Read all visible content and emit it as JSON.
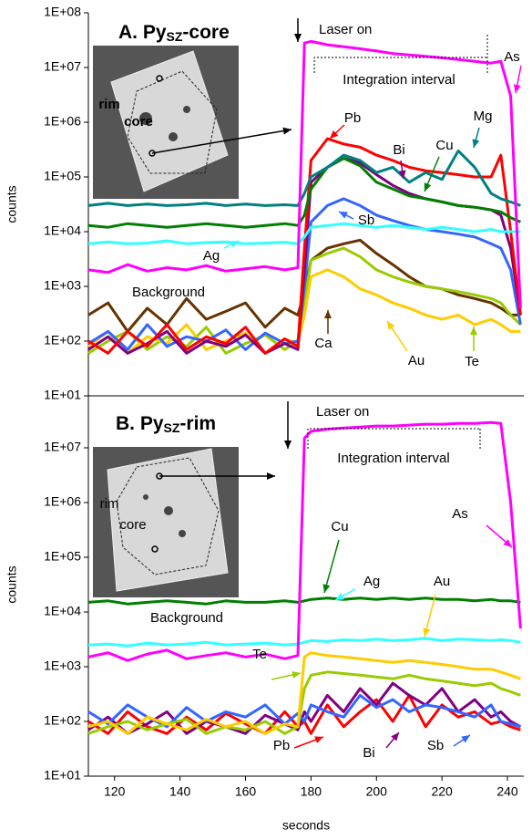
{
  "chart_data": [
    {
      "type": "line",
      "log_y": true,
      "title": {
        "main": "A. Py",
        "sub": "SZ",
        "rest": "-core"
      },
      "y_label": "counts",
      "annotations": [
        "Laser on",
        "Integration interval",
        "Background"
      ],
      "inset_labels": [
        "rim",
        "core"
      ],
      "xlim": [
        112,
        245
      ],
      "ylim": [
        10,
        100000000
      ],
      "yticks": [
        {
          "value": 10,
          "label": "1E+01"
        },
        {
          "value": 100,
          "label": "1E+02"
        },
        {
          "value": 1000,
          "label": "1E+03"
        },
        {
          "value": 10000,
          "label": "1E+04"
        },
        {
          "value": 100000,
          "label": "1E+05"
        },
        {
          "value": 1000000,
          "label": "1E+06"
        },
        {
          "value": 10000000,
          "label": "1E+07"
        },
        {
          "value": 100000000,
          "label": "1E+08"
        }
      ],
      "x": [
        112,
        118,
        124,
        130,
        136,
        142,
        148,
        154,
        160,
        166,
        172,
        176,
        178,
        180,
        185,
        190,
        195,
        200,
        205,
        210,
        215,
        220,
        225,
        230,
        235,
        238,
        241,
        244
      ],
      "series": [
        {
          "name": "Ca",
          "color": "#663300",
          "values": [
            300,
            500,
            150,
            400,
            200,
            600,
            250,
            350,
            500,
            180,
            400,
            300,
            800,
            3000,
            5000,
            6000,
            7000,
            4000,
            2500,
            1500,
            1000,
            900,
            700,
            600,
            500,
            400,
            300,
            300
          ]
        },
        {
          "name": "Te",
          "color": "#99cc00",
          "values": [
            60,
            100,
            150,
            70,
            120,
            80,
            180,
            60,
            90,
            130,
            70,
            100,
            500,
            3000,
            4000,
            5000,
            3500,
            2000,
            1500,
            1200,
            1000,
            900,
            800,
            700,
            600,
            500,
            300,
            200
          ]
        },
        {
          "name": "Au",
          "color": "#ffcc00",
          "values": [
            80,
            150,
            60,
            120,
            90,
            200,
            70,
            100,
            140,
            60,
            110,
            90,
            300,
            1500,
            2000,
            1500,
            900,
            700,
            500,
            400,
            300,
            250,
            300,
            200,
            250,
            200,
            150,
            150
          ]
        },
        {
          "name": "Sb",
          "color": "#3366ff",
          "values": [
            90,
            150,
            70,
            200,
            80,
            120,
            100,
            160,
            70,
            140,
            90,
            100,
            1000,
            15000,
            30000,
            40000,
            30000,
            20000,
            16000,
            13000,
            11000,
            10000,
            9000,
            8000,
            6000,
            5000,
            2000,
            200
          ]
        },
        {
          "name": "Bi",
          "color": "#800080",
          "values": [
            70,
            120,
            60,
            90,
            150,
            60,
            100,
            80,
            130,
            60,
            90,
            70,
            2000,
            80000,
            150000,
            220000,
            180000,
            110000,
            70000,
            50000,
            40000,
            35000,
            30000,
            28000,
            25000,
            20000,
            5000,
            300
          ]
        },
        {
          "name": "Pb",
          "color": "#ff0000",
          "values": [
            100,
            60,
            150,
            80,
            200,
            70,
            120,
            90,
            180,
            60,
            110,
            80,
            5000,
            200000,
            500000,
            400000,
            350000,
            250000,
            200000,
            150000,
            130000,
            120000,
            110000,
            100000,
            100000,
            250000,
            10000,
            300
          ]
        },
        {
          "name": "Ag",
          "color": "#33ffff",
          "values": [
            6000,
            6500,
            6000,
            6200,
            6800,
            6000,
            6300,
            6500,
            6000,
            6200,
            6400,
            6000,
            8000,
            12000,
            13000,
            14000,
            13000,
            12000,
            13000,
            12000,
            11000,
            12000,
            11000,
            10000,
            11000,
            10000,
            10000,
            10000
          ]
        },
        {
          "name": "Cu",
          "color": "#008000",
          "values": [
            13000,
            12000,
            14000,
            13000,
            12000,
            13000,
            14000,
            13000,
            12000,
            13000,
            14000,
            13000,
            20000,
            60000,
            150000,
            220000,
            160000,
            80000,
            60000,
            45000,
            40000,
            35000,
            30000,
            28000,
            25000,
            23000,
            18000,
            15000
          ]
        },
        {
          "name": "Mg",
          "color": "#008080",
          "values": [
            30000,
            33000,
            30000,
            32000,
            30000,
            31000,
            33000,
            30000,
            32000,
            30000,
            31000,
            30000,
            50000,
            100000,
            150000,
            250000,
            200000,
            120000,
            150000,
            80000,
            120000,
            90000,
            300000,
            150000,
            50000,
            40000,
            35000,
            30000
          ]
        },
        {
          "name": "As",
          "color": "#ff00ff",
          "values": [
            2000,
            1800,
            2500,
            1900,
            2200,
            2000,
            2400,
            1900,
            2100,
            2300,
            2000,
            2200,
            28000000,
            30000000,
            26000000,
            24000000,
            22000000,
            20000000,
            18000000,
            17000000,
            16000000,
            15000000,
            14000000,
            13000000,
            12000000,
            13000000,
            3000000,
            400
          ]
        }
      ]
    },
    {
      "type": "line",
      "log_y": true,
      "title": {
        "main": "B. Py",
        "sub": "SZ",
        "rest": "-rim"
      },
      "y_label": "counts",
      "x_label": "seconds",
      "annotations": [
        "Laser on",
        "Integration interval",
        "Background"
      ],
      "inset_labels": [
        "rim",
        "core"
      ],
      "xlim": [
        112,
        245
      ],
      "xticks": [
        120,
        140,
        160,
        180,
        200,
        220,
        240
      ],
      "ylim": [
        10,
        100000000
      ],
      "yticks": [
        {
          "value": 10,
          "label": "1E+01"
        },
        {
          "value": 100,
          "label": "1E+02"
        },
        {
          "value": 1000,
          "label": "1E+03"
        },
        {
          "value": 10000,
          "label": "1E+04"
        },
        {
          "value": 100000,
          "label": "1E+05"
        },
        {
          "value": 1000000,
          "label": "1E+06"
        },
        {
          "value": 10000000,
          "label": "1E+07"
        }
      ],
      "x": [
        112,
        118,
        124,
        130,
        136,
        142,
        148,
        154,
        160,
        166,
        172,
        176,
        178,
        180,
        185,
        190,
        195,
        200,
        205,
        210,
        215,
        220,
        225,
        230,
        235,
        238,
        241,
        244
      ],
      "series": [
        {
          "name": "Pb",
          "color": "#ff0000",
          "values": [
            100,
            60,
            150,
            80,
            60,
            120,
            70,
            140,
            90,
            60,
            150,
            80,
            100,
            60,
            200,
            80,
            150,
            250,
            100,
            300,
            80,
            200,
            120,
            150,
            90,
            100,
            80,
            70
          ]
        },
        {
          "name": "Bi",
          "color": "#800080",
          "values": [
            70,
            120,
            60,
            90,
            150,
            60,
            100,
            80,
            60,
            130,
            90,
            70,
            150,
            100,
            300,
            150,
            400,
            200,
            500,
            300,
            200,
            400,
            150,
            250,
            120,
            150,
            100,
            80
          ]
        },
        {
          "name": "Sb",
          "color": "#3366ff",
          "values": [
            150,
            90,
            200,
            120,
            80,
            180,
            100,
            150,
            120,
            200,
            90,
            140,
            100,
            200,
            150,
            120,
            300,
            180,
            250,
            150,
            200,
            180,
            150,
            120,
            200,
            100,
            90,
            80
          ]
        },
        {
          "name": "Te",
          "color": "#99cc00",
          "values": [
            60,
            80,
            100,
            70,
            90,
            110,
            60,
            80,
            70,
            100,
            60,
            80,
            400,
            700,
            800,
            750,
            700,
            650,
            600,
            700,
            600,
            550,
            500,
            450,
            500,
            400,
            350,
            300
          ]
        },
        {
          "name": "Au",
          "color": "#ffcc00",
          "values": [
            80,
            100,
            60,
            120,
            90,
            70,
            110,
            80,
            100,
            60,
            90,
            80,
            1500,
            1800,
            1600,
            1500,
            1400,
            1300,
            1200,
            1300,
            1200,
            1100,
            1000,
            900,
            900,
            800,
            700,
            600
          ]
        },
        {
          "name": "Ag",
          "color": "#33ffff",
          "values": [
            2500,
            2600,
            2400,
            2700,
            2500,
            2600,
            2800,
            2500,
            2600,
            2700,
            2500,
            2600,
            2800,
            3000,
            2900,
            3100,
            3000,
            3200,
            3000,
            3100,
            3300,
            3000,
            3200,
            3100,
            3000,
            3100,
            3000,
            2800
          ]
        },
        {
          "name": "Cu",
          "color": "#008000",
          "values": [
            15000,
            16000,
            14000,
            15000,
            16000,
            15000,
            14000,
            16000,
            15000,
            15000,
            16000,
            15000,
            16000,
            17000,
            18000,
            17000,
            18000,
            17000,
            18000,
            17000,
            18000,
            17000,
            17000,
            16000,
            17000,
            16000,
            16000,
            15000
          ]
        },
        {
          "name": "As",
          "color": "#ff00ff",
          "values": [
            1500,
            1800,
            1300,
            1700,
            2000,
            1400,
            1600,
            1800,
            1500,
            1700,
            1400,
            1600,
            15000000,
            20000000,
            22000000,
            23000000,
            24000000,
            25000000,
            25000000,
            26000000,
            27000000,
            27000000,
            28000000,
            28000000,
            29000000,
            28000000,
            1000000,
            5000
          ]
        }
      ]
    }
  ]
}
